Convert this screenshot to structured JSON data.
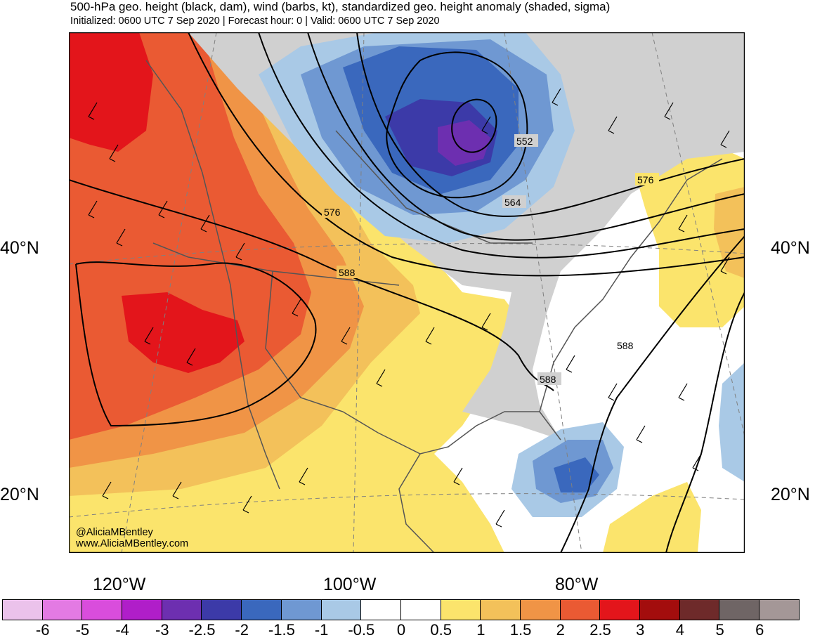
{
  "header": {
    "title": "500-hPa geo. height (black, dam), wind (barbs, kt), standardized geo. height anomaly (shaded, sigma)",
    "subtitle": "Initialized: 0600 UTC 7 Sep 2020 | Forecast hour: 0 | Valid: 0600 UTC 7 Sep 2020"
  },
  "map": {
    "lat_labels": [
      "40°N",
      "20°N"
    ],
    "lon_labels": [
      "120°W",
      "100°W",
      "80°W"
    ],
    "contour_labels": [
      "552",
      "564",
      "576",
      "576",
      "588",
      "588",
      "588"
    ],
    "credit_handle": "@AliciaMBentley",
    "credit_url": "www.AliciaMBentley.com",
    "colors": {
      "land_border": "#555555",
      "contour": "#000000",
      "neutral_land": "#d0d0d0"
    }
  },
  "colorbar": {
    "ticks": [
      "-6",
      "-5",
      "-4",
      "-3",
      "-2.5",
      "-2",
      "-1.5",
      "-1",
      "-0.5",
      "0",
      "0.5",
      "1",
      "1.5",
      "2",
      "2.5",
      "3",
      "4",
      "5",
      "6"
    ],
    "colors": [
      "#ebc2eb",
      "#e37ae3",
      "#d94ddc",
      "#b01ec9",
      "#6d2fb0",
      "#3c3aa8",
      "#3a68bd",
      "#6f98d2",
      "#a9c9e6",
      "#ffffff",
      "#ffffff",
      "#fbe46c",
      "#f3c15a",
      "#f09446",
      "#ea5a33",
      "#e3151b",
      "#a30d0d",
      "#6e2a2a",
      "#6f6565",
      "#a49797"
    ]
  }
}
